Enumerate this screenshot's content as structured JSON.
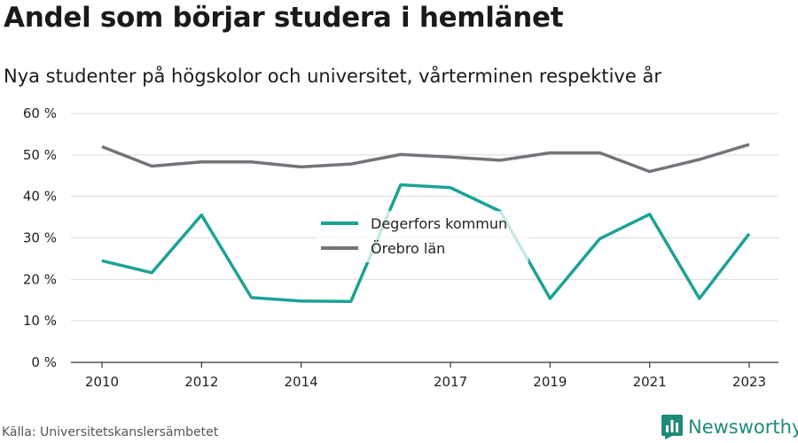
{
  "title": "Andel som börjar studera i hemlänet",
  "subtitle": "Nya studenter på högskolor och universitet, vårterminen respektive år",
  "source": "Källa: Universitetskanslersämbetet",
  "brand": {
    "name": "Newsworthy",
    "icon": "bar-chart-logo-icon",
    "color": "#1f8a78"
  },
  "chart_data": {
    "type": "line",
    "x": [
      2010,
      2011,
      2012,
      2013,
      2014,
      2015,
      2016,
      2017,
      2018,
      2019,
      2020,
      2021,
      2022,
      2023
    ],
    "x_tick_labels": [
      "2010",
      "2012",
      "2014",
      "2017",
      "2019",
      "2021",
      "2023"
    ],
    "y_tick_labels": [
      "0 %",
      "10 %",
      "20 %",
      "30 %",
      "40 %",
      "50 %",
      "60 %"
    ],
    "ylim": [
      0,
      60
    ],
    "grid": true,
    "legend_position": "center",
    "series": [
      {
        "name": "Degerfors kommun",
        "color": "#1aa394",
        "values": [
          24.5,
          21.6,
          35.5,
          15.6,
          14.8,
          14.7,
          42.8,
          42.1,
          36.4,
          15.4,
          29.8,
          35.7,
          15.4,
          31.0
        ]
      },
      {
        "name": "Örebro län",
        "color": "#75737a",
        "values": [
          52.0,
          47.3,
          48.3,
          48.3,
          47.1,
          47.8,
          50.1,
          49.5,
          48.7,
          50.5,
          50.5,
          46.0,
          48.9,
          52.5
        ]
      }
    ]
  }
}
